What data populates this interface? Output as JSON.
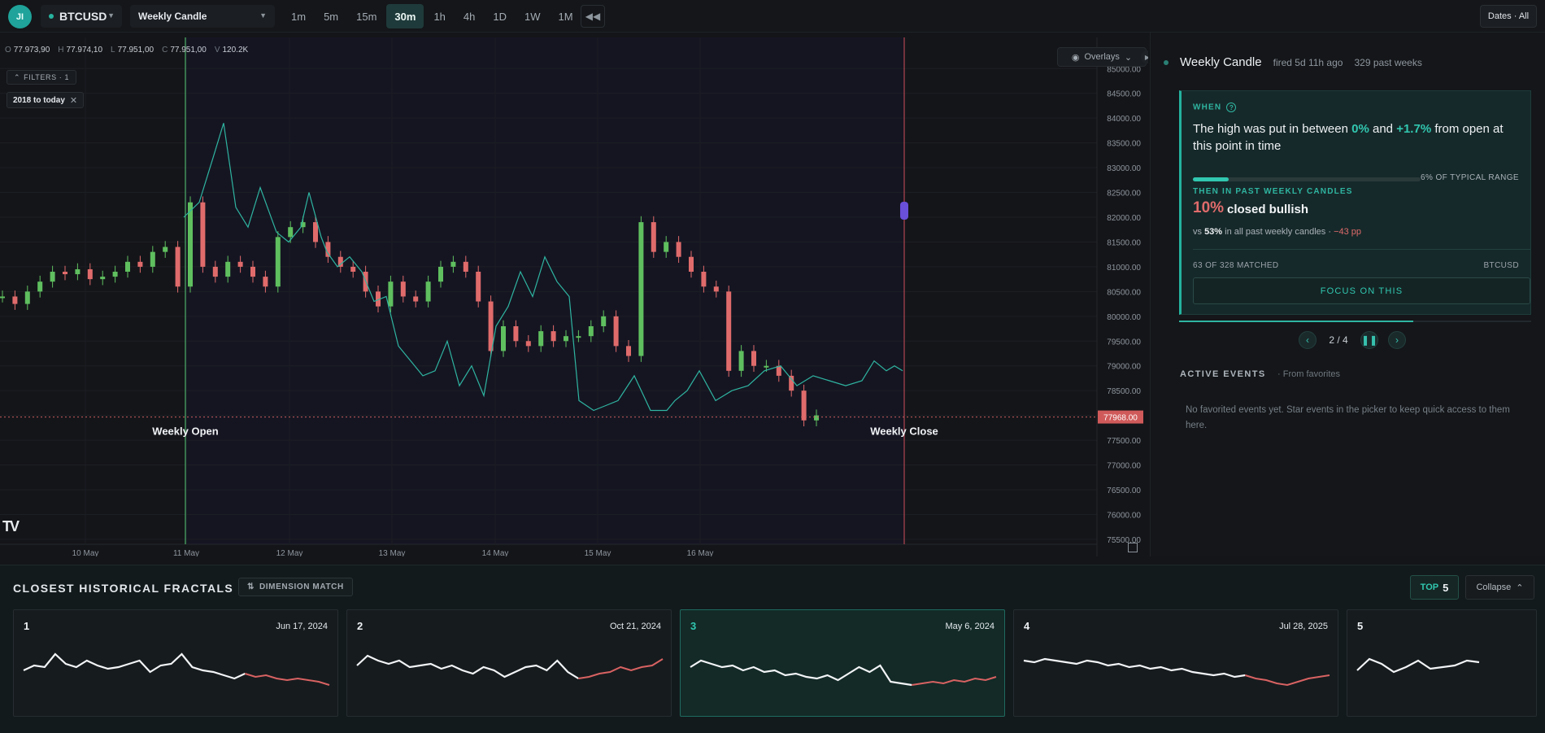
{
  "header": {
    "avatar_initials": "JI",
    "symbol": "BTCUSD",
    "event": "Weekly Candle",
    "timeframes": [
      "1m",
      "5m",
      "15m",
      "30m",
      "1h",
      "4h",
      "1D",
      "1W",
      "1M"
    ],
    "active_timeframe": "30m",
    "dates_button": "Dates · All"
  },
  "chart": {
    "ohlc": {
      "o": "77.973,90",
      "h": "77.974,10",
      "l": "77.951,00",
      "c": "77.951,00",
      "v": "120.2K"
    },
    "ohlc_labels": {
      "o": "O",
      "h": "H",
      "l": "L",
      "c": "C",
      "v": "V"
    },
    "filters_label": "FILTERS · 1",
    "range_filter": "2018 to today",
    "overlays_label": "Overlays",
    "price_label": "77968.00",
    "weekly_open_label": "Weekly Open",
    "weekly_close_label": "Weekly Close",
    "logo_text": "TV"
  },
  "chart_data": {
    "type": "line",
    "title": "",
    "y_ticks": [
      "85000.00",
      "84500.00",
      "84000.00",
      "83500.00",
      "83000.00",
      "82500.00",
      "82000.00",
      "81500.00",
      "81000.00",
      "80500.00",
      "80000.00",
      "79500.00",
      "79000.00",
      "78500.00",
      "78000.00",
      "77500.00",
      "77000.00",
      "76500.00",
      "76000.00",
      "75500.00"
    ],
    "ylim": [
      75400,
      85300
    ],
    "x_ticks": [
      "10 May",
      "11 May",
      "12 May",
      "13 May",
      "14 May",
      "15 May",
      "16 May"
    ],
    "current_price": 77968,
    "series": [
      {
        "kind": "candles",
        "color_up": "#5fbf5f",
        "color_down": "#e06b6b",
        "x": [
          0,
          14,
          28,
          42,
          56,
          70,
          84,
          98,
          112,
          126,
          140,
          154,
          168,
          182,
          196,
          210,
          224,
          238,
          252,
          266,
          280,
          294,
          308,
          322,
          336,
          350,
          364,
          378,
          392,
          406,
          420,
          434,
          448,
          462,
          476,
          490,
          504,
          518,
          532,
          546,
          560,
          574,
          588,
          602,
          616,
          630,
          644,
          658,
          672,
          686,
          700,
          714,
          728,
          742,
          756,
          770,
          784,
          798,
          812,
          826,
          840,
          854,
          868,
          882,
          896,
          910
        ],
        "values": [
          80400,
          80250,
          80500,
          80700,
          80900,
          80850,
          80950,
          80750,
          80800,
          80900,
          81100,
          81000,
          81300,
          81400,
          80600,
          82300,
          81000,
          80800,
          81100,
          81000,
          80800,
          80600,
          81600,
          81800,
          81900,
          81500,
          81200,
          81000,
          80900,
          80500,
          80200,
          80700,
          80400,
          80300,
          80700,
          81000,
          81100,
          80900,
          80300,
          79300,
          79800,
          79500,
          79400,
          79700,
          79500,
          79600,
          79600,
          79800,
          80000,
          79400,
          79200,
          81900,
          81300,
          81500,
          81200,
          80900,
          80600,
          80500,
          78900,
          79300,
          79000,
          79000,
          78800,
          78500,
          77900,
          78000
        ]
      },
      {
        "kind": "line",
        "color": "#2fb5a1",
        "x": [
          226,
          245,
          262,
          275,
          283,
          290,
          305,
          320,
          340,
          355,
          370,
          380,
          395,
          402,
          415,
          430,
          445,
          460,
          475,
          490,
          505,
          520,
          535,
          550,
          565,
          580,
          595,
          610,
          625,
          640,
          655,
          670,
          685,
          700,
          712,
          730,
          745,
          760,
          780,
          800,
          820,
          830,
          845,
          860,
          880,
          900,
          920,
          940,
          960,
          980,
          1000,
          1020,
          1040,
          1060,
          1075,
          1090,
          1100,
          1110
        ],
        "values": [
          82000,
          82300,
          83200,
          83900,
          83000,
          82200,
          81800,
          82600,
          81700,
          81500,
          81800,
          82500,
          81600,
          81300,
          81000,
          81200,
          80900,
          80300,
          80400,
          79400,
          79100,
          78800,
          78900,
          79500,
          78600,
          79000,
          78400,
          79800,
          80200,
          80900,
          80400,
          81200,
          80700,
          80400,
          78300,
          78100,
          78200,
          78300,
          78800,
          78100,
          78100,
          78300,
          78500,
          78900,
          78300,
          78500,
          78600,
          78900,
          79000,
          78600,
          78800,
          78700,
          78600,
          78700,
          79100,
          78900,
          79000,
          78900
        ]
      }
    ]
  },
  "right_panel": {
    "title": "Weekly Candle",
    "fired": "fired 5d 11h ago",
    "past": "329 past weeks",
    "when_label": "WHEN",
    "help_icon": "?",
    "when_text_a": "The high was put in between",
    "when_val_1": "0%",
    "when_and": "and",
    "when_val_2": "+1.7%",
    "when_text_b": "from open at this point in time",
    "range_fraction": 0.06,
    "range_caption": "6% OF TYPICAL RANGE",
    "then_label": "THEN IN PAST WEEKLY CANDLES",
    "outcome_pct": "10%",
    "outcome_label": "closed bullish",
    "vs_prefix": "vs",
    "vs_pct": "53%",
    "vs_suffix": "in all past weekly candles ·",
    "vs_delta": "−43 pp",
    "matched": "63 OF 328 MATCHED",
    "matched_symbol": "BTCUSD",
    "focus_button": "FOCUS ON THIS",
    "pager_text": "2 / 4",
    "active_events_title": "ACTIVE EVENTS",
    "active_events_sub": "· From favorites",
    "active_events_empty": "No favorited events yet. Star events in the picker to keep quick access to them here."
  },
  "fractals": {
    "title": "CLOSEST HISTORICAL FRACTALS",
    "dimension_match": "DIMENSION MATCH",
    "top_label": "TOP",
    "top_n": "5",
    "collapse_label": "Collapse",
    "selected_index": 2,
    "cards": [
      {
        "rank": "1",
        "date": "Jun 17, 2024"
      },
      {
        "rank": "2",
        "date": "Oct 21, 2024"
      },
      {
        "rank": "3",
        "date": "May 6, 2024"
      },
      {
        "rank": "4",
        "date": "Jul 28, 2025"
      },
      {
        "rank": "5",
        "date": ""
      }
    ]
  },
  "colors": {
    "accent": "#31c7b0",
    "bearish": "#e06b6b",
    "bullish": "#5fbf5f",
    "open_line": "#4caf6a",
    "close_line": "#b0474f"
  }
}
